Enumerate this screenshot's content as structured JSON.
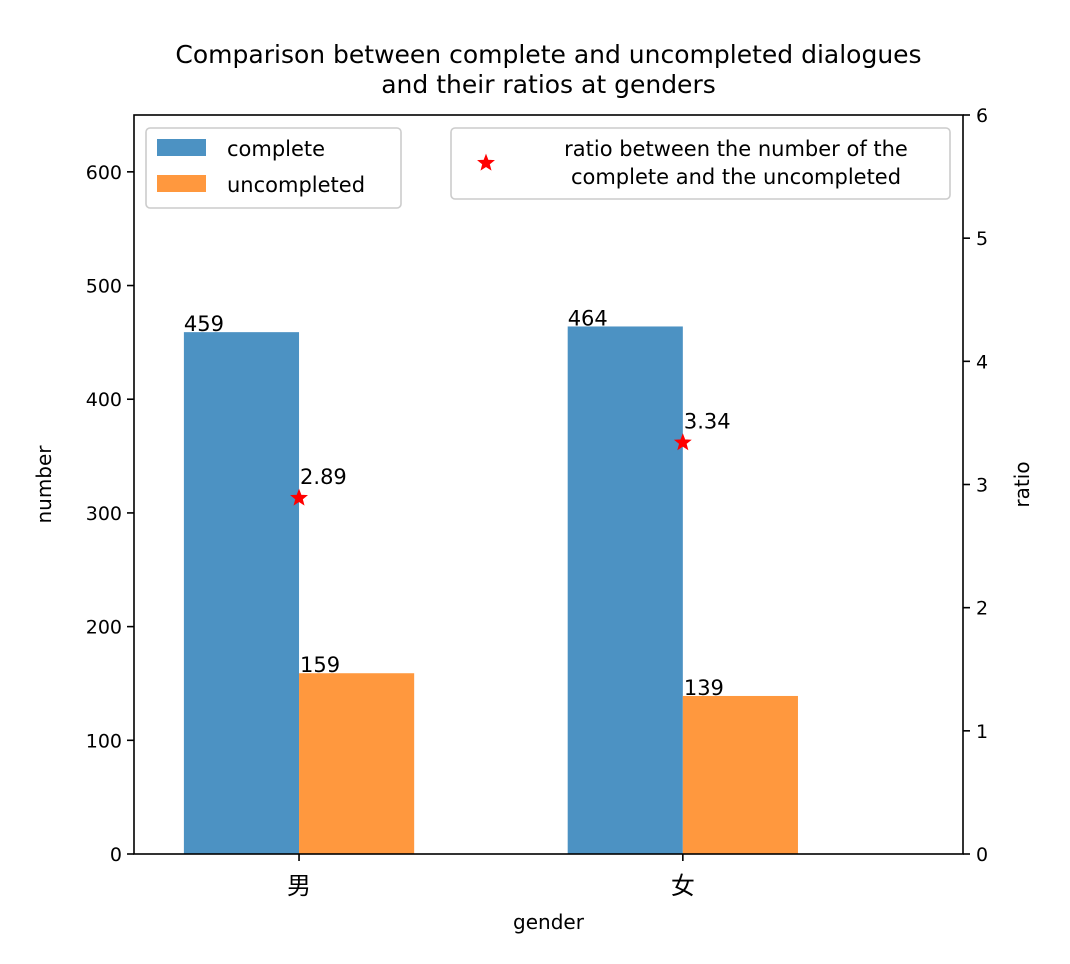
{
  "chart_data": {
    "type": "bar",
    "title": "Comparison between complete and uncompleted dialogues\nand their ratios at genders",
    "xlabel": "gender",
    "ylabel": "number",
    "y2label": "ratio",
    "categories": [
      "男",
      "女"
    ],
    "ylim": [
      0,
      650
    ],
    "y2lim": [
      0,
      6
    ],
    "yticks": [
      0,
      100,
      200,
      300,
      400,
      500,
      600
    ],
    "y2ticks": [
      0,
      1,
      2,
      3,
      4,
      5,
      6
    ],
    "grid": false,
    "series": [
      {
        "name": "complete",
        "axis": "left",
        "kind": "bar",
        "color": "#4c92c3",
        "values": [
          459,
          464
        ]
      },
      {
        "name": "uncompleted",
        "axis": "left",
        "kind": "bar",
        "color": "#ff983e",
        "values": [
          159,
          139
        ]
      },
      {
        "name": "ratio between the number of the\ncomplete and the uncompleted",
        "axis": "right",
        "kind": "scatter",
        "marker": "star",
        "color": "#ff0000",
        "values": [
          2.89,
          3.34
        ]
      }
    ],
    "bar_labels": {
      "complete": [
        "459",
        "464"
      ],
      "uncompleted": [
        "159",
        "139"
      ],
      "ratio": [
        "2.89",
        "3.34"
      ]
    },
    "legends": [
      {
        "placement": "upper-left",
        "entries": [
          "complete",
          "uncompleted"
        ]
      },
      {
        "placement": "upper-right",
        "entries": [
          "ratio between the number of the\ncomplete and the uncompleted"
        ]
      }
    ]
  }
}
